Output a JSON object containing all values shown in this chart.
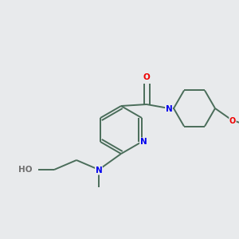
{
  "bg_color": "#e8eaec",
  "bond_color": "#4a6d5a",
  "atom_colors": {
    "N": "#0000ee",
    "O": "#ee0000",
    "H": "#707070",
    "C": "#4a6d5a"
  },
  "figsize": [
    3.0,
    3.0
  ],
  "dpi": 100
}
